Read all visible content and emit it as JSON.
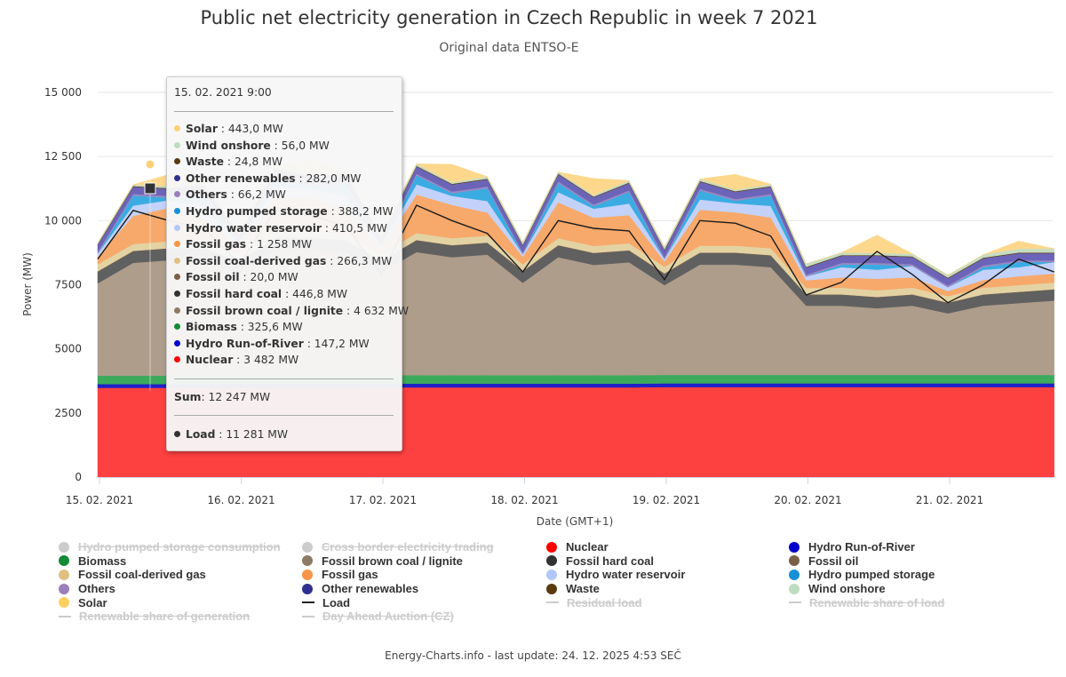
{
  "title": "Public net electricity generation in Czech Republic in week 7 2021",
  "subtitle": "Original data ENTSO-E",
  "footer": "Energy-Charts.info - last update: 24. 12. 2025 4:53 SEČ",
  "chart_data": {
    "type": "area",
    "stacked": true,
    "title": "Public net electricity generation in Czech Republic in week 7 2021",
    "subtitle": "Original data ENTSO-E",
    "xlabel": "Date (GMT+1)",
    "ylabel": "Power (MW)",
    "ylim": [
      0,
      15000
    ],
    "yticks": [
      0,
      2500,
      5000,
      7500,
      10000,
      12500,
      15000
    ],
    "ytick_labels": [
      "0",
      "2500",
      "5000",
      "7500",
      "10 000",
      "12 500",
      "15 000"
    ],
    "xtick_labels": [
      "15. 02. 2021",
      "16. 02. 2021",
      "17. 02. 2021",
      "18. 02. 2021",
      "19. 02. 2021",
      "20. 02. 2021",
      "21. 02. 2021"
    ],
    "x": [
      "15.02 0:00",
      "15.02 6:00",
      "15.02 12:00",
      "15.02 18:00",
      "16.02 0:00",
      "16.02 6:00",
      "16.02 12:00",
      "16.02 18:00",
      "17.02 0:00",
      "17.02 6:00",
      "17.02 12:00",
      "17.02 18:00",
      "18.02 0:00",
      "18.02 6:00",
      "18.02 12:00",
      "18.02 18:00",
      "19.02 0:00",
      "19.02 6:00",
      "19.02 12:00",
      "19.02 18:00",
      "20.02 0:00",
      "20.02 6:00",
      "20.02 12:00",
      "20.02 18:00",
      "21.02 0:00",
      "21.02 6:00",
      "21.02 12:00",
      "21.02 18:00"
    ],
    "grid": true,
    "legend_position": "bottom",
    "series": [
      {
        "name": "Nuclear",
        "color": "#fd4040",
        "values": [
          3482,
          3482,
          3482,
          3482,
          3490,
          3490,
          3490,
          3490,
          3500,
          3500,
          3500,
          3500,
          3500,
          3500,
          3500,
          3500,
          3510,
          3510,
          3510,
          3510,
          3510,
          3510,
          3510,
          3510,
          3510,
          3510,
          3510,
          3510
        ]
      },
      {
        "name": "Hydro Run-of-River",
        "color": "#2020c8",
        "values": [
          147,
          147,
          147,
          147,
          145,
          145,
          145,
          145,
          145,
          145,
          145,
          145,
          145,
          145,
          145,
          145,
          145,
          145,
          145,
          145,
          145,
          145,
          145,
          145,
          145,
          145,
          145,
          145
        ]
      },
      {
        "name": "Biomass",
        "color": "#3caa5c",
        "values": [
          326,
          326,
          326,
          326,
          330,
          330,
          330,
          330,
          330,
          330,
          330,
          330,
          330,
          330,
          330,
          330,
          330,
          330,
          330,
          330,
          330,
          330,
          330,
          330,
          330,
          330,
          330,
          330
        ]
      },
      {
        "name": "Fossil brown coal / lignite",
        "color": "#ae9d8b",
        "values": [
          3600,
          4400,
          4500,
          4500,
          4000,
          4900,
          4900,
          4800,
          4000,
          4800,
          4600,
          4700,
          3600,
          4600,
          4300,
          4400,
          3500,
          4300,
          4300,
          4200,
          2700,
          2700,
          2600,
          2700,
          2400,
          2700,
          2800,
          2900
        ]
      },
      {
        "name": "Fossil hard coal",
        "color": "#606060",
        "values": [
          450,
          447,
          450,
          450,
          440,
          450,
          450,
          450,
          440,
          450,
          450,
          450,
          440,
          450,
          450,
          450,
          440,
          450,
          450,
          450,
          420,
          420,
          420,
          420,
          400,
          420,
          420,
          420
        ]
      },
      {
        "name": "Fossil oil",
        "color": "#7a6250",
        "values": [
          20,
          20,
          20,
          20,
          20,
          20,
          20,
          20,
          20,
          20,
          20,
          20,
          20,
          20,
          20,
          20,
          20,
          20,
          20,
          20,
          20,
          20,
          20,
          20,
          20,
          20,
          20,
          20
        ]
      },
      {
        "name": "Fossil coal-derived gas",
        "color": "#e3d3a3",
        "values": [
          270,
          266,
          270,
          270,
          260,
          270,
          270,
          270,
          260,
          270,
          270,
          270,
          260,
          270,
          270,
          270,
          260,
          270,
          270,
          270,
          250,
          260,
          260,
          260,
          250,
          260,
          260,
          260
        ]
      },
      {
        "name": "Fossil gas",
        "color": "#f7a96b",
        "values": [
          300,
          1100,
          1300,
          900,
          300,
          1300,
          1300,
          1000,
          200,
          1500,
          1300,
          900,
          300,
          1400,
          1100,
          1100,
          200,
          1400,
          1300,
          1200,
          300,
          400,
          450,
          400,
          200,
          300,
          350,
          350
        ]
      },
      {
        "name": "Hydro water reservoir",
        "color": "#c3d2fa",
        "values": [
          120,
          400,
          300,
          450,
          100,
          400,
          350,
          450,
          100,
          400,
          350,
          450,
          100,
          400,
          350,
          450,
          100,
          400,
          350,
          450,
          150,
          400,
          350,
          450,
          150,
          400,
          350,
          450
        ]
      },
      {
        "name": "Hydro pumped storage",
        "color": "#3aace2",
        "values": [
          0,
          388,
          100,
          450,
          0,
          350,
          100,
          500,
          0,
          350,
          100,
          500,
          0,
          350,
          100,
          450,
          0,
          350,
          100,
          400,
          0,
          100,
          200,
          0,
          0,
          100,
          200,
          0
        ]
      },
      {
        "name": "Others",
        "color": "#9a89c2",
        "values": [
          66,
          66,
          66,
          66,
          66,
          66,
          66,
          66,
          66,
          66,
          66,
          66,
          66,
          66,
          66,
          66,
          66,
          66,
          66,
          66,
          66,
          66,
          66,
          66,
          66,
          66,
          66,
          66
        ]
      },
      {
        "name": "Other renewables",
        "color": "#6c64b8",
        "values": [
          280,
          282,
          280,
          280,
          280,
          280,
          280,
          280,
          280,
          280,
          280,
          280,
          280,
          280,
          280,
          280,
          280,
          280,
          280,
          280,
          280,
          280,
          280,
          280,
          280,
          280,
          280,
          280
        ]
      },
      {
        "name": "Waste",
        "color": "#5a3a10",
        "values": [
          25,
          25,
          25,
          25,
          25,
          25,
          25,
          25,
          25,
          25,
          25,
          25,
          25,
          25,
          25,
          25,
          25,
          25,
          25,
          25,
          25,
          25,
          25,
          25,
          25,
          25,
          25,
          25
        ]
      },
      {
        "name": "Wind onshore",
        "color": "#c6ddc2",
        "values": [
          60,
          56,
          80,
          100,
          80,
          60,
          80,
          100,
          120,
          80,
          60,
          80,
          100,
          60,
          60,
          80,
          100,
          80,
          60,
          80,
          120,
          100,
          80,
          100,
          100,
          120,
          150,
          150
        ]
      },
      {
        "name": "Solar",
        "color": "#fdd88c",
        "values": [
          0,
          0,
          450,
          0,
          0,
          0,
          600,
          0,
          0,
          0,
          700,
          0,
          0,
          0,
          650,
          0,
          0,
          0,
          600,
          0,
          0,
          0,
          700,
          0,
          0,
          0,
          300,
          0
        ]
      }
    ],
    "line_series": [
      {
        "name": "Load",
        "color": "#1a1a1a",
        "values": [
          8500,
          10400,
          10000,
          9700,
          8300,
          10400,
          10200,
          9800,
          7900,
          10600,
          10000,
          9500,
          8000,
          10000,
          9700,
          9600,
          7700,
          10000,
          9900,
          9400,
          7100,
          7600,
          8800,
          7900,
          6800,
          7500,
          8500,
          8000
        ]
      }
    ]
  },
  "tooltip": {
    "header": "15. 02. 2021 9:00",
    "rows": [
      {
        "name": "Solar",
        "value": "443,0 MW",
        "color": "#fdd078"
      },
      {
        "name": "Wind onshore",
        "value": "56,0 MW",
        "color": "#c0dcc0"
      },
      {
        "name": "Waste",
        "value": "24,8 MW",
        "color": "#5a3a10"
      },
      {
        "name": "Other renewables",
        "value": "282,0 MW",
        "color": "#303090"
      },
      {
        "name": "Others",
        "value": "66,2 MW",
        "color": "#9a7fba"
      },
      {
        "name": "Hydro pumped storage",
        "value": "388,2 MW",
        "color": "#1890d8"
      },
      {
        "name": "Hydro water reservoir",
        "value": "410,5 MW",
        "color": "#b0c8f8"
      },
      {
        "name": "Fossil gas",
        "value": "1 258 MW",
        "color": "#f79646"
      },
      {
        "name": "Fossil coal-derived gas",
        "value": "266,3 MW",
        "color": "#e0c080"
      },
      {
        "name": "Fossil oil",
        "value": "20,0 MW",
        "color": "#786048"
      },
      {
        "name": "Fossil hard coal",
        "value": "446,8 MW",
        "color": "#333333"
      },
      {
        "name": "Fossil brown coal / lignite",
        "value": "4 632 MW",
        "color": "#8c7a66"
      },
      {
        "name": "Biomass",
        "value": "325,6 MW",
        "color": "#138a36"
      },
      {
        "name": "Hydro Run-of-River",
        "value": "147,2 MW",
        "color": "#0000cc"
      },
      {
        "name": "Nuclear",
        "value": "3 482 MW",
        "color": "#ff0000"
      }
    ],
    "sum_label": "Sum",
    "sum_value": "12 247 MW",
    "load": {
      "name": "Load",
      "value": "11 281 MW",
      "color": "#333333"
    }
  },
  "legend": [
    {
      "label": "Hydro pumped storage consumption",
      "color": "#cccccc",
      "type": "dot",
      "enabled": false
    },
    {
      "label": "Cross border electricity trading",
      "color": "#cccccc",
      "type": "dot",
      "enabled": false
    },
    {
      "label": "Nuclear",
      "color": "#ff0000",
      "type": "dot",
      "enabled": true
    },
    {
      "label": "Hydro Run-of-River",
      "color": "#0000cc",
      "type": "dot",
      "enabled": true
    },
    {
      "label": "Biomass",
      "color": "#138a36",
      "type": "dot",
      "enabled": true
    },
    {
      "label": "Fossil brown coal / lignite",
      "color": "#8c7a66",
      "type": "dot",
      "enabled": true
    },
    {
      "label": "Fossil hard coal",
      "color": "#333333",
      "type": "dot",
      "enabled": true
    },
    {
      "label": "Fossil oil",
      "color": "#786048",
      "type": "dot",
      "enabled": true
    },
    {
      "label": "Fossil coal-derived gas",
      "color": "#e0c080",
      "type": "dot",
      "enabled": true
    },
    {
      "label": "Fossil gas",
      "color": "#f79646",
      "type": "dot",
      "enabled": true
    },
    {
      "label": "Hydro water reservoir",
      "color": "#b0c8f8",
      "type": "dot",
      "enabled": true
    },
    {
      "label": "Hydro pumped storage",
      "color": "#1890d8",
      "type": "dot",
      "enabled": true
    },
    {
      "label": "Others",
      "color": "#9a7fba",
      "type": "dot",
      "enabled": true
    },
    {
      "label": "Other renewables",
      "color": "#303090",
      "type": "dot",
      "enabled": true
    },
    {
      "label": "Waste",
      "color": "#5a3a10",
      "type": "dot",
      "enabled": true
    },
    {
      "label": "Wind onshore",
      "color": "#c0dcc0",
      "type": "dot",
      "enabled": true
    },
    {
      "label": "Solar",
      "color": "#ffd060",
      "type": "dot",
      "enabled": true
    },
    {
      "label": "Load",
      "color": "#222222",
      "type": "line",
      "enabled": true
    },
    {
      "label": "Residual load",
      "color": "#cccccc",
      "type": "line",
      "enabled": false
    },
    {
      "label": "Renewable share of load",
      "color": "#cccccc",
      "type": "line",
      "enabled": false
    },
    {
      "label": "Renewable share of generation",
      "color": "#cccccc",
      "type": "line",
      "enabled": false
    },
    {
      "label": "Day Ahead Auction (CZ)",
      "color": "#cccccc",
      "type": "line",
      "enabled": false
    }
  ]
}
